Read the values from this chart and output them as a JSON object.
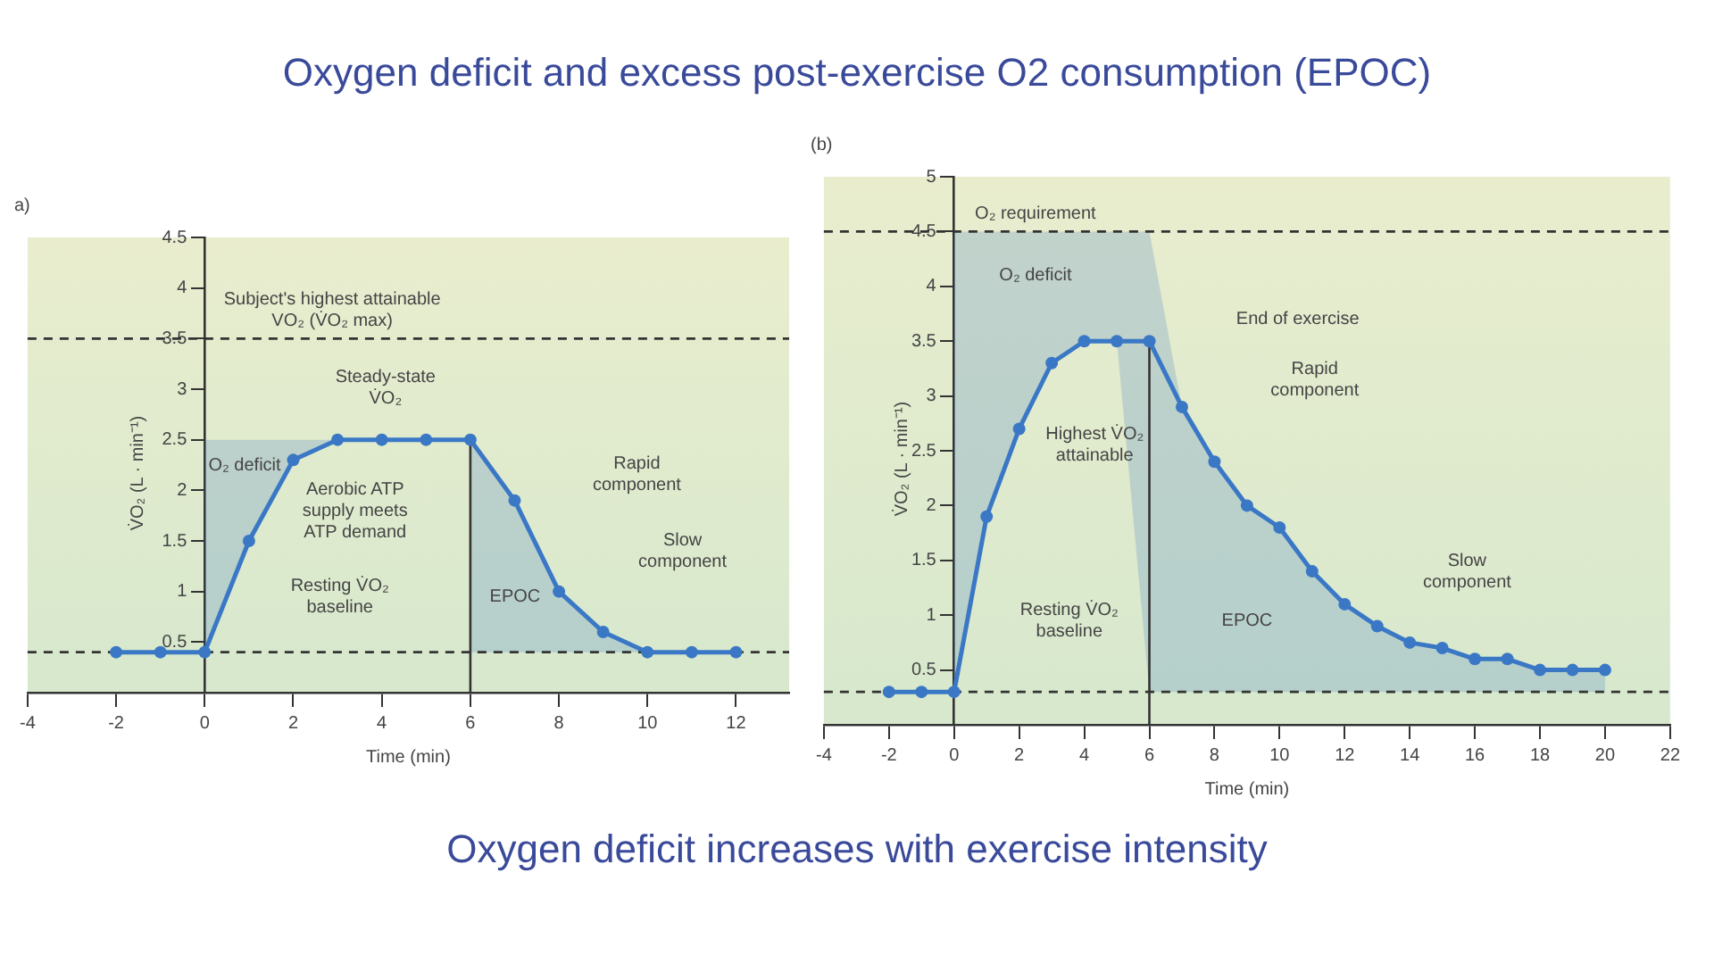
{
  "chart_data": [
    {
      "type": "line",
      "title": "Oxygen deficit and excess post-exercise O2 consumption (EPOC)",
      "xlabel": "Time (min)",
      "ylabel": "V̇O₂ (L · min⁻¹)",
      "x": [
        -2,
        -1,
        0,
        1,
        2,
        3,
        4,
        5,
        6,
        7,
        8,
        9,
        10,
        11,
        12
      ],
      "series": [
        {
          "color": "#3a78c6",
          "values": [
            0.4,
            0.4,
            0.4,
            1.5,
            2.3,
            2.5,
            2.5,
            2.5,
            2.5,
            1.9,
            1.0,
            0.6,
            0.4,
            0.4,
            0.4
          ],
          "lower": [
            null,
            null,
            0.4,
            1.5,
            2.3,
            2.5,
            null,
            null,
            0.4,
            0.4,
            0.4,
            0.4,
            0.4,
            null,
            null
          ],
          "upper": [
            null,
            null,
            2.5,
            2.5,
            2.5,
            2.5,
            null,
            null,
            2.5,
            1.9,
            1.0,
            0.6,
            0.4,
            null,
            null
          ]
        }
      ],
      "xlim": [
        -4,
        13.2
      ],
      "xticks": [
        -4,
        -2,
        0,
        2,
        4,
        6,
        8,
        10,
        12
      ],
      "ylim": [
        0,
        4.5
      ],
      "yticks": [
        0.5,
        1,
        1.5,
        2,
        2.5,
        3,
        3.5,
        4,
        4.5
      ],
      "ref_lines": [
        {
          "axis": "y",
          "value": 3.5,
          "label": "Subject's highest attainable VO₂ (V̇O₂ max)",
          "line_style": "dashed"
        },
        {
          "axis": "y",
          "value": 0.4,
          "line_style": "dashed"
        },
        {
          "axis": "x",
          "value": 6,
          "line_style": "solid"
        }
      ],
      "annotations": [
        "a)",
        "Steady-state V̇O₂",
        "O₂ deficit",
        "Aerobic ATP supply meets ATP demand",
        "Resting V̇O₂ baseline",
        "EPOC",
        "Rapid component",
        "Slow component"
      ],
      "grid": false,
      "legend": false,
      "marker": "circle",
      "line_style": "solid"
    },
    {
      "type": "line",
      "xlabel": "Time (min)",
      "ylabel": "V̇O₂ (L · min⁻¹)",
      "x": [
        -2,
        -1,
        0,
        1,
        2,
        3,
        4,
        5,
        6,
        7,
        8,
        9,
        10,
        11,
        12,
        13,
        14,
        15,
        16,
        17,
        18,
        19,
        20
      ],
      "series": [
        {
          "color": "#3a78c6",
          "values": [
            0.3,
            0.3,
            0.3,
            1.9,
            2.7,
            3.3,
            3.5,
            3.5,
            3.5,
            2.9,
            2.4,
            2.0,
            1.8,
            1.4,
            1.1,
            0.9,
            0.75,
            0.7,
            0.6,
            0.6,
            0.5,
            0.5,
            0.5
          ],
          "lower": [
            null,
            null,
            0.3,
            1.9,
            2.7,
            3.3,
            3.5,
            3.5,
            0.3,
            0.3,
            0.3,
            0.3,
            0.3,
            0.3,
            0.3,
            0.3,
            0.3,
            0.3,
            0.3,
            0.3,
            0.3,
            0.3,
            0.3
          ],
          "upper": [
            null,
            null,
            4.5,
            4.5,
            4.5,
            4.5,
            4.5,
            4.5,
            4.5,
            2.9,
            2.4,
            2.0,
            1.8,
            1.4,
            1.1,
            0.9,
            0.75,
            0.7,
            0.6,
            0.6,
            0.5,
            0.5,
            0.5
          ]
        }
      ],
      "xlim": [
        -4,
        22
      ],
      "xticks": [
        -4,
        -2,
        0,
        2,
        4,
        6,
        8,
        10,
        12,
        14,
        16,
        18,
        20,
        22
      ],
      "ylim": [
        0,
        5
      ],
      "yticks": [
        0.5,
        1,
        1.5,
        2,
        2.5,
        3,
        3.5,
        4,
        4.5,
        5
      ],
      "ref_lines": [
        {
          "axis": "y",
          "value": 4.5,
          "label": "O₂ requirement",
          "line_style": "dashed"
        },
        {
          "axis": "y",
          "value": 0.3,
          "line_style": "dashed"
        },
        {
          "axis": "x",
          "value": 6,
          "line_style": "solid"
        }
      ],
      "annotations": [
        "(b)",
        "Oxygen deficit increases with exercise intensity",
        "O₂ deficit",
        "End of exercise",
        "Rapid component",
        "Highest V̇O₂ attainable",
        "Resting V̇O₂ baseline",
        "EPOC",
        "Slow component"
      ],
      "grid": false,
      "legend": false,
      "marker": "circle",
      "line_style": "solid"
    }
  ]
}
